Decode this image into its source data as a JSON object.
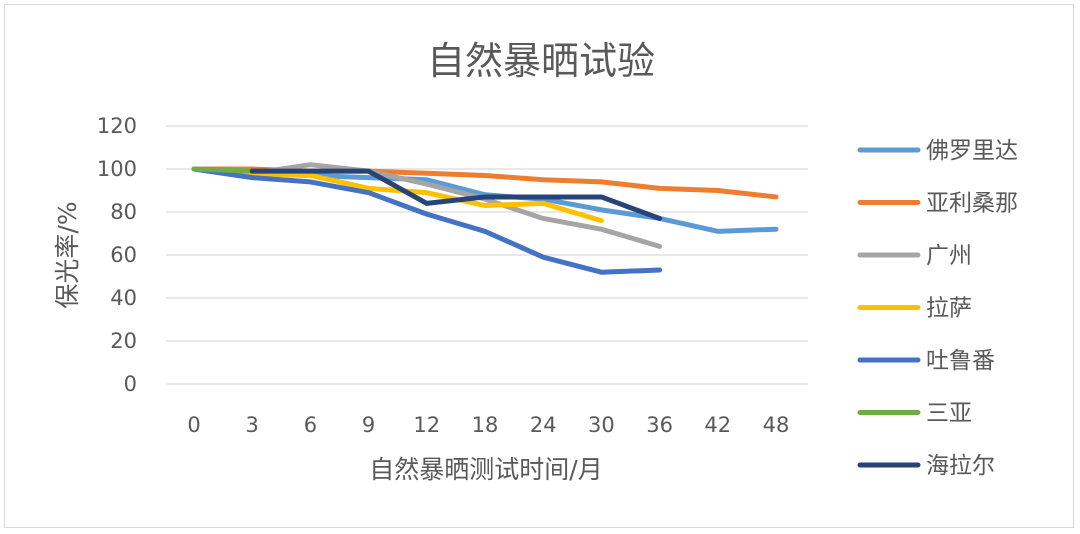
{
  "chart_data": {
    "type": "line",
    "title": "自然暴晒试验",
    "xlabel": "自然暴晒测试时间/月",
    "ylabel": "保光率/%",
    "categories": [
      "0",
      "3",
      "6",
      "9",
      "12",
      "18",
      "24",
      "30",
      "36",
      "42",
      "48"
    ],
    "ylim": [
      0,
      120
    ],
    "yticks": [
      "0",
      "20",
      "40",
      "60",
      "80",
      "100",
      "120"
    ],
    "grid": true,
    "legend_position": "right",
    "series": [
      {
        "name": "佛罗里达",
        "color": "#5B9BD5",
        "values": [
          100,
          98,
          97,
          96,
          95,
          88,
          86,
          81,
          77,
          71,
          72
        ]
      },
      {
        "name": "亚利桑那",
        "color": "#ED7D31",
        "values": [
          100,
          100,
          99,
          99,
          98,
          97,
          95,
          94,
          91,
          90,
          87
        ]
      },
      {
        "name": "广州",
        "color": "#A5A5A5",
        "values": [
          100,
          98,
          102,
          99,
          93,
          86,
          77,
          72,
          64,
          null,
          null
        ]
      },
      {
        "name": "拉萨",
        "color": "#FFC000",
        "values": [
          100,
          98,
          97,
          91,
          89,
          83,
          84,
          76,
          null,
          null,
          null
        ]
      },
      {
        "name": "吐鲁番",
        "color": "#4472C4",
        "values": [
          100,
          96,
          94,
          89,
          79,
          71,
          59,
          52,
          53,
          null,
          null
        ]
      },
      {
        "name": "三亚",
        "color": "#70AD47",
        "values": [
          100,
          99,
          null,
          null,
          null,
          null,
          null,
          null,
          null,
          null,
          null
        ]
      },
      {
        "name": "海拉尔",
        "color": "#264478",
        "values": [
          null,
          99,
          99,
          99,
          84,
          87,
          87,
          87,
          77,
          null,
          null
        ]
      }
    ]
  }
}
